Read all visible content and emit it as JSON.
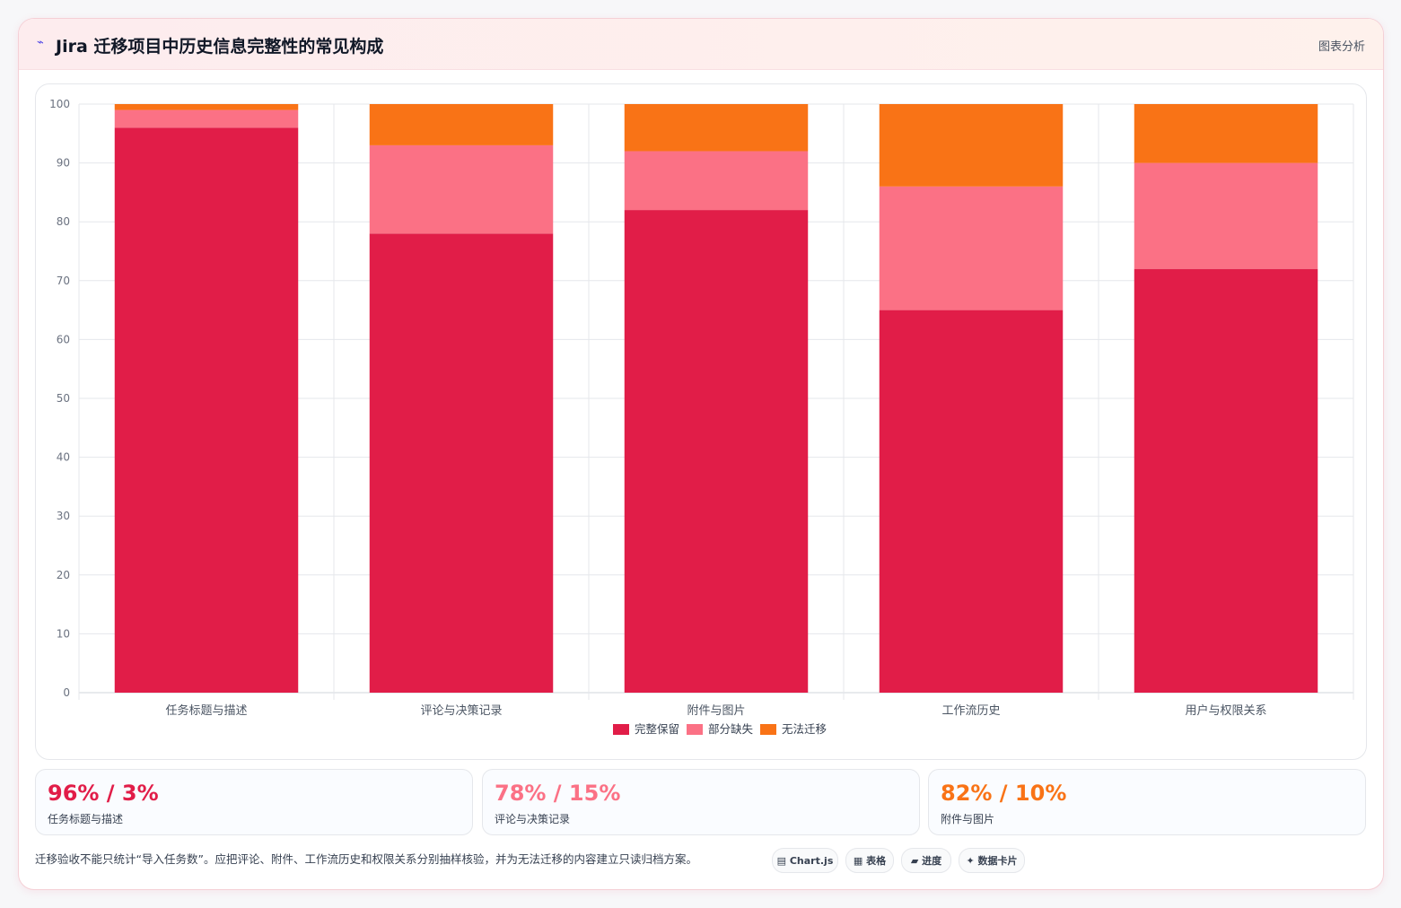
{
  "header": {
    "icon": "pulse-icon",
    "title": "Jira 迁移项目中历史信息完整性的常见构成",
    "tag": "图表分析"
  },
  "colors": {
    "complete": "#e11d48",
    "partial": "#fb7185",
    "failed": "#f97316"
  },
  "chart_data": {
    "type": "bar",
    "stacked": true,
    "categories": [
      "任务标题与描述",
      "评论与决策记录",
      "附件与图片",
      "工作流历史",
      "用户与权限关系"
    ],
    "series": [
      {
        "name": "完整保留",
        "values": [
          96,
          78,
          82,
          65,
          72
        ],
        "color": "#e11d48"
      },
      {
        "name": "部分缺失",
        "values": [
          3,
          15,
          10,
          21,
          18
        ],
        "color": "#fb7185"
      },
      {
        "name": "无法迁移",
        "values": [
          1,
          7,
          8,
          14,
          10
        ],
        "color": "#f97316"
      }
    ],
    "ylim": [
      0,
      100
    ],
    "yticks": [
      0,
      10,
      20,
      30,
      40,
      50,
      60,
      70,
      80,
      90,
      100
    ],
    "grid": true,
    "legend": "bottom"
  },
  "stats": [
    {
      "value": "96% / 3%",
      "label": "任务标题与描述",
      "color": "#e11d48"
    },
    {
      "value": "78% / 15%",
      "label": "评论与决策记录",
      "color": "#fb7185"
    },
    {
      "value": "82% / 10%",
      "label": "附件与图片",
      "color": "#f97316"
    }
  ],
  "footer": {
    "note": "迁移验收不能只统计“导入任务数”。应把评论、附件、工作流历史和权限关系分别抽样核验，并为无法迁移的内容建立只读归档方案。",
    "chips": [
      {
        "icon": "chart-icon",
        "glyph": "▤",
        "label": "Chart.js"
      },
      {
        "icon": "table-icon",
        "glyph": "▦",
        "label": "表格"
      },
      {
        "icon": "progress-icon",
        "glyph": "▰",
        "label": "进度"
      },
      {
        "icon": "sparkle-icon",
        "glyph": "✦",
        "label": "数据卡片"
      }
    ]
  }
}
